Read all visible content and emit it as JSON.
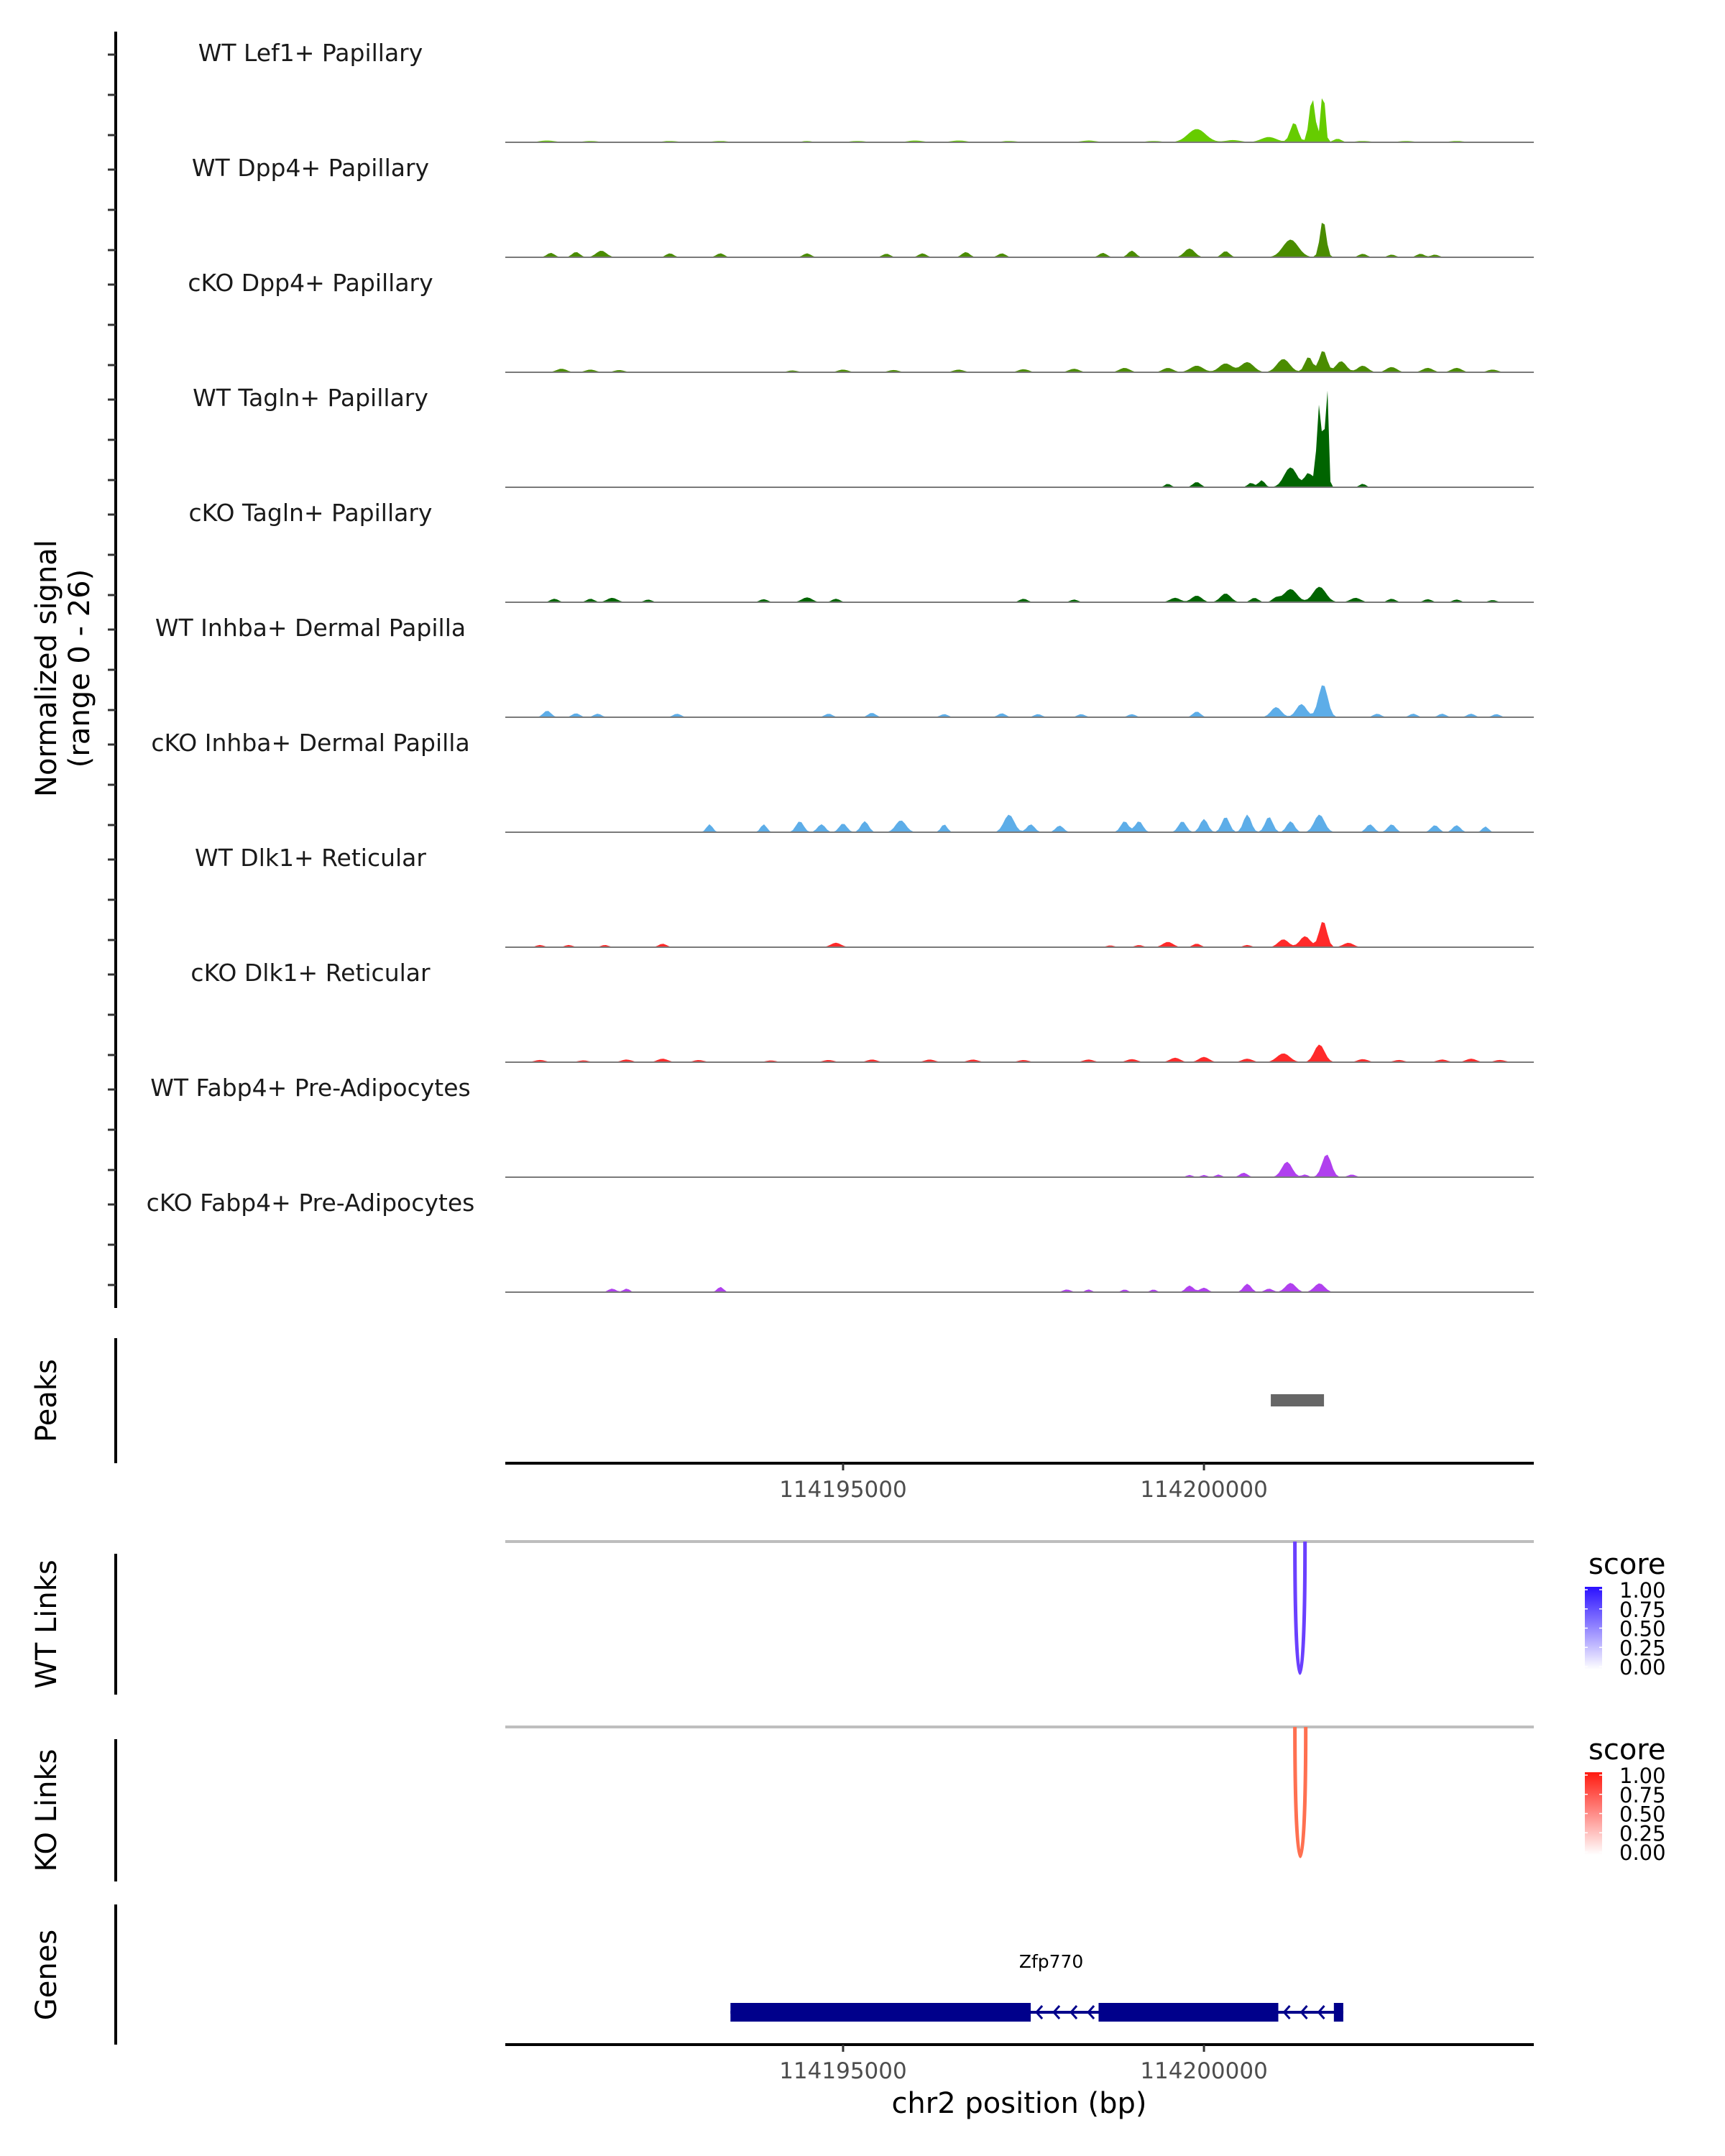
{
  "chart_data": {
    "type": "area",
    "title": "",
    "xlabel": "chr2 position (bp)",
    "ylabel": "Normalized signal\n(range 0 - 26)",
    "ylabel_lines": [
      "Normalized signal",
      "(range 0 - 26)"
    ],
    "xlim": [
      114190320,
      114204570
    ],
    "ylim": [
      0,
      26
    ],
    "x_ticks": [
      114195000,
      114200000
    ],
    "x_tick_labels": [
      "114195000",
      "114200000"
    ],
    "coverage_tracks": [
      {
        "name": "WT Lef1+ Papillary",
        "color": "#66cc00",
        "peaks": [
          [
            114190900,
            0.4,
            300
          ],
          [
            114191500,
            0.3,
            300
          ],
          [
            114192600,
            0.3,
            300
          ],
          [
            114193300,
            0.3,
            300
          ],
          [
            114194500,
            0.3,
            200
          ],
          [
            114195200,
            0.3,
            300
          ],
          [
            114196000,
            0.4,
            300
          ],
          [
            114196600,
            0.4,
            300
          ],
          [
            114197300,
            0.3,
            300
          ],
          [
            114198400,
            0.4,
            300
          ],
          [
            114199300,
            0.3,
            300
          ],
          [
            114199900,
            3,
            350
          ],
          [
            114200400,
            0.5,
            300
          ],
          [
            114200900,
            1.2,
            300
          ],
          [
            114201250,
            4.5,
            150
          ],
          [
            114201500,
            10,
            120
          ],
          [
            114201650,
            12,
            80
          ],
          [
            114201850,
            0.8,
            150
          ],
          [
            114202200,
            0.3,
            300
          ],
          [
            114202800,
            0.3,
            300
          ],
          [
            114203500,
            0.3,
            300
          ]
        ]
      },
      {
        "name": "WT Dpp4+ Papillary",
        "color": "#4a8c00",
        "peaks": [
          [
            114190950,
            1,
            150
          ],
          [
            114191300,
            1.2,
            150
          ],
          [
            114191650,
            1.5,
            200
          ],
          [
            114192600,
            0.9,
            150
          ],
          [
            114193300,
            0.9,
            150
          ],
          [
            114194500,
            0.9,
            150
          ],
          [
            114195600,
            0.8,
            150
          ],
          [
            114196100,
            0.9,
            150
          ],
          [
            114196700,
            1.2,
            150
          ],
          [
            114197200,
            0.9,
            150
          ],
          [
            114198600,
            1,
            150
          ],
          [
            114199000,
            1.5,
            150
          ],
          [
            114199800,
            2,
            200
          ],
          [
            114200300,
            1.4,
            150
          ],
          [
            114201200,
            4,
            300
          ],
          [
            114201650,
            8.5,
            120
          ],
          [
            114202200,
            0.8,
            150
          ],
          [
            114202600,
            0.6,
            150
          ],
          [
            114203000,
            0.8,
            150
          ],
          [
            114203200,
            0.6,
            150
          ]
        ]
      },
      {
        "name": "cKO Dpp4+ Papillary",
        "color": "#4a8c00",
        "peaks": [
          [
            114191100,
            0.8,
            200
          ],
          [
            114191500,
            0.6,
            200
          ],
          [
            114191900,
            0.5,
            200
          ],
          [
            114194300,
            0.4,
            200
          ],
          [
            114195000,
            0.6,
            200
          ],
          [
            114195700,
            0.5,
            200
          ],
          [
            114196600,
            0.6,
            200
          ],
          [
            114197500,
            0.7,
            200
          ],
          [
            114198200,
            0.8,
            200
          ],
          [
            114198900,
            1,
            200
          ],
          [
            114199500,
            1,
            200
          ],
          [
            114199900,
            1.5,
            250
          ],
          [
            114200300,
            2,
            250
          ],
          [
            114200600,
            2.3,
            250
          ],
          [
            114201100,
            3,
            250
          ],
          [
            114201450,
            3.5,
            150
          ],
          [
            114201650,
            5,
            150
          ],
          [
            114201900,
            2.5,
            200
          ],
          [
            114202200,
            1.5,
            200
          ],
          [
            114202600,
            1.2,
            200
          ],
          [
            114203100,
            1,
            200
          ],
          [
            114203500,
            1,
            200
          ],
          [
            114204000,
            0.6,
            200
          ]
        ]
      },
      {
        "name": "WT Tagln+ Papillary",
        "color": "#006400",
        "peaks": [
          [
            114199500,
            0.8,
            120
          ],
          [
            114199900,
            1.2,
            150
          ],
          [
            114200650,
            1,
            120
          ],
          [
            114200800,
            1.6,
            120
          ],
          [
            114201200,
            4.5,
            250
          ],
          [
            114201450,
            3.2,
            150
          ],
          [
            114201600,
            19,
            100
          ],
          [
            114201700,
            25.5,
            60
          ],
          [
            114202200,
            0.8,
            120
          ]
        ]
      },
      {
        "name": "cKO Tagln+ Papillary",
        "color": "#006400",
        "peaks": [
          [
            114191000,
            0.8,
            150
          ],
          [
            114191500,
            0.8,
            150
          ],
          [
            114191800,
            1,
            200
          ],
          [
            114192300,
            0.6,
            150
          ],
          [
            114193900,
            0.7,
            150
          ],
          [
            114194500,
            1.1,
            200
          ],
          [
            114194900,
            0.8,
            150
          ],
          [
            114197500,
            0.8,
            150
          ],
          [
            114198200,
            0.6,
            150
          ],
          [
            114199600,
            1,
            200
          ],
          [
            114199900,
            1.5,
            200
          ],
          [
            114200300,
            2,
            200
          ],
          [
            114200700,
            1,
            150
          ],
          [
            114201000,
            1,
            150
          ],
          [
            114201200,
            3,
            250
          ],
          [
            114201600,
            3.5,
            250
          ],
          [
            114202100,
            1,
            200
          ],
          [
            114202600,
            0.8,
            150
          ],
          [
            114203100,
            0.7,
            150
          ],
          [
            114203500,
            0.6,
            150
          ],
          [
            114204000,
            0.5,
            150
          ]
        ]
      },
      {
        "name": "WT Inhba+ Dermal Papilla",
        "color": "#5dade8",
        "peaks": [
          [
            114190900,
            1.5,
            150
          ],
          [
            114191300,
            0.9,
            150
          ],
          [
            114191600,
            0.8,
            150
          ],
          [
            114192700,
            0.8,
            150
          ],
          [
            114194800,
            0.8,
            150
          ],
          [
            114195400,
            1,
            150
          ],
          [
            114196400,
            0.7,
            150
          ],
          [
            114197200,
            0.9,
            150
          ],
          [
            114197700,
            0.7,
            150
          ],
          [
            114198300,
            0.7,
            150
          ],
          [
            114199000,
            0.7,
            150
          ],
          [
            114199900,
            1.3,
            150
          ],
          [
            114201000,
            2.3,
            200
          ],
          [
            114201350,
            3,
            200
          ],
          [
            114201650,
            7.5,
            180
          ],
          [
            114202400,
            0.8,
            150
          ],
          [
            114202900,
            0.8,
            150
          ],
          [
            114203300,
            0.8,
            150
          ],
          [
            114203700,
            0.8,
            150
          ],
          [
            114204050,
            0.7,
            150
          ]
        ]
      },
      {
        "name": "cKO Inhba+ Dermal Papilla",
        "color": "#5dade8",
        "peaks": [
          [
            114193150,
            1.8,
            120
          ],
          [
            114193900,
            1.8,
            120
          ],
          [
            114194400,
            2.5,
            150
          ],
          [
            114194700,
            1.8,
            150
          ],
          [
            114195000,
            2,
            150
          ],
          [
            114195300,
            2.5,
            150
          ],
          [
            114195800,
            2.7,
            200
          ],
          [
            114196400,
            1.8,
            120
          ],
          [
            114197300,
            4,
            200
          ],
          [
            114197600,
            1.8,
            150
          ],
          [
            114198000,
            1.5,
            150
          ],
          [
            114198900,
            2.5,
            150
          ],
          [
            114199100,
            2.5,
            150
          ],
          [
            114199700,
            2.5,
            150
          ],
          [
            114200000,
            3,
            150
          ],
          [
            114200300,
            3.5,
            150
          ],
          [
            114200600,
            4,
            150
          ],
          [
            114200900,
            3.5,
            150
          ],
          [
            114201200,
            2.5,
            150
          ],
          [
            114201600,
            4,
            200
          ],
          [
            114202300,
            1.8,
            150
          ],
          [
            114202600,
            1.8,
            150
          ],
          [
            114203200,
            1.6,
            150
          ],
          [
            114203500,
            1.6,
            150
          ],
          [
            114203900,
            1.3,
            120
          ]
        ]
      },
      {
        "name": "WT Dlk1+ Reticular",
        "color": "#ff2a2a",
        "peaks": [
          [
            114190800,
            0.5,
            150
          ],
          [
            114191200,
            0.5,
            150
          ],
          [
            114191700,
            0.5,
            150
          ],
          [
            114192500,
            0.8,
            150
          ],
          [
            114194900,
            1,
            200
          ],
          [
            114198700,
            0.4,
            150
          ],
          [
            114199100,
            0.5,
            150
          ],
          [
            114199500,
            1.2,
            200
          ],
          [
            114199900,
            0.8,
            150
          ],
          [
            114200600,
            0.5,
            150
          ],
          [
            114201100,
            1.8,
            200
          ],
          [
            114201400,
            2.5,
            200
          ],
          [
            114201650,
            6,
            150
          ],
          [
            114202000,
            1,
            200
          ]
        ]
      },
      {
        "name": "cKO Dlk1+ Reticular",
        "color": "#ff2a2a",
        "peaks": [
          [
            114190800,
            0.5,
            200
          ],
          [
            114191400,
            0.4,
            200
          ],
          [
            114192000,
            0.6,
            200
          ],
          [
            114192500,
            0.8,
            200
          ],
          [
            114193000,
            0.5,
            200
          ],
          [
            114194000,
            0.4,
            200
          ],
          [
            114194800,
            0.5,
            200
          ],
          [
            114195400,
            0.6,
            200
          ],
          [
            114196200,
            0.6,
            200
          ],
          [
            114196800,
            0.6,
            200
          ],
          [
            114197500,
            0.5,
            200
          ],
          [
            114198400,
            0.6,
            200
          ],
          [
            114199000,
            0.7,
            200
          ],
          [
            114199600,
            1,
            200
          ],
          [
            114200000,
            1.2,
            200
          ],
          [
            114200600,
            0.8,
            200
          ],
          [
            114201100,
            2,
            250
          ],
          [
            114201600,
            4,
            200
          ],
          [
            114202200,
            0.7,
            200
          ],
          [
            114202700,
            0.5,
            200
          ],
          [
            114203300,
            0.6,
            200
          ],
          [
            114203700,
            0.8,
            200
          ],
          [
            114204100,
            0.5,
            200
          ]
        ]
      },
      {
        "name": "WT Fabp4+ Pre-Adipocytes",
        "color": "#b040ee",
        "peaks": [
          [
            114199800,
            0.5,
            120
          ],
          [
            114200000,
            0.5,
            120
          ],
          [
            114200200,
            0.6,
            120
          ],
          [
            114200550,
            1,
            150
          ],
          [
            114201150,
            3.5,
            200
          ],
          [
            114201400,
            0.6,
            120
          ],
          [
            114201700,
            5.2,
            180
          ],
          [
            114202050,
            0.6,
            150
          ]
        ]
      },
      {
        "name": "cKO Fabp4+ Pre-Adipocytes",
        "color": "#b040ee",
        "peaks": [
          [
            114191800,
            0.8,
            150
          ],
          [
            114192000,
            0.8,
            120
          ],
          [
            114193300,
            1.2,
            120
          ],
          [
            114198100,
            0.6,
            150
          ],
          [
            114198400,
            0.6,
            120
          ],
          [
            114198900,
            0.6,
            120
          ],
          [
            114199300,
            0.6,
            120
          ],
          [
            114199800,
            1.5,
            150
          ],
          [
            114200000,
            1,
            150
          ],
          [
            114200600,
            1.9,
            150
          ],
          [
            114200900,
            0.8,
            150
          ],
          [
            114201200,
            2.1,
            200
          ],
          [
            114201600,
            2,
            200
          ],
          [
            114204050,
            0.2,
            50
          ]
        ]
      }
    ],
    "peaks_track": {
      "label": "Peaks",
      "color": "#666666",
      "regions": [
        [
          114200926,
          114201663
        ]
      ]
    },
    "link_tracks": [
      {
        "label": "WT Links",
        "color": "#6a40ff",
        "links": [
          {
            "start": 114201260,
            "end": 114201400,
            "score": 0.75
          }
        ],
        "legend": {
          "title": "score",
          "low_color": "#ffffff",
          "high_color": "#2a10ff",
          "ticks": [
            "1.00",
            "0.75",
            "0.50",
            "0.25",
            "0.00"
          ]
        }
      },
      {
        "label": "KO Links",
        "color": "#ff7050",
        "links": [
          {
            "start": 114201260,
            "end": 114201410,
            "score": 0.6
          }
        ],
        "legend": {
          "title": "score",
          "low_color": "#ffffff",
          "high_color": "#ff1a10",
          "ticks": [
            "1.00",
            "0.75",
            "0.50",
            "0.25",
            "0.00"
          ]
        }
      }
    ],
    "genes_track": {
      "label": "Genes",
      "color": "#00008b",
      "genes": [
        {
          "name": "Zfp770",
          "strand": "-",
          "start": 114193440,
          "end": 114201930,
          "exons": [
            [
              114193440,
              114197600
            ],
            [
              114198540,
              114201030
            ],
            [
              114201800,
              114201930
            ]
          ]
        }
      ]
    }
  }
}
